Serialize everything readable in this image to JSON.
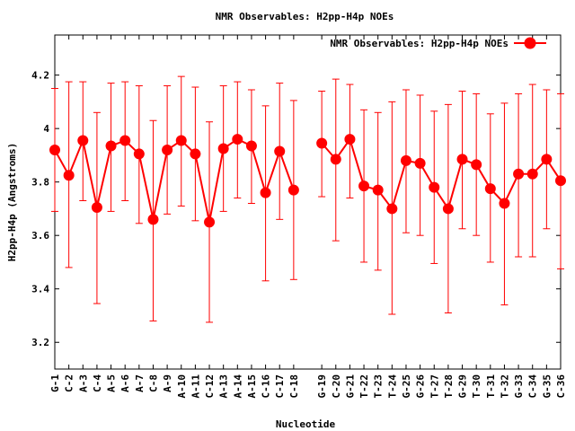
{
  "chart_data": {
    "type": "line",
    "title": "NMR Observables: H2pp-H4p NOEs",
    "xlabel": "Nucleotide",
    "ylabel": "H2pp-H4p (Angstroms)",
    "ylim": [
      3.1,
      4.35
    ],
    "yticks": [
      "3.2",
      "3.4",
      "3.6",
      "3.8",
      "4",
      "4.2"
    ],
    "yticks_values": [
      3.2,
      3.4,
      3.6,
      3.8,
      4.0,
      4.2
    ],
    "grid": false,
    "legend_position": "top-right",
    "categories": [
      "G-1",
      "C-2",
      "A-3",
      "C-4",
      "A-5",
      "A-6",
      "A-7",
      "C-8",
      "A-9",
      "A-10",
      "A-11",
      "C-12",
      "A-13",
      "A-14",
      "A-15",
      "C-16",
      "C-17",
      "C-18",
      "G-19",
      "C-20",
      "G-21",
      "T-22",
      "T-23",
      "T-24",
      "G-25",
      "G-26",
      "T-27",
      "T-28",
      "G-29",
      "T-30",
      "T-31",
      "T-32",
      "G-33",
      "C-34",
      "G-35",
      "C-36"
    ],
    "series": [
      {
        "name": "NMR Observables: H2pp-H4p NOEs",
        "color": "#ff0000",
        "x": [
          1,
          2,
          3,
          4,
          5,
          6,
          7,
          8,
          9,
          10,
          11,
          12,
          13,
          14,
          15,
          16,
          17,
          18,
          20,
          21,
          22,
          23,
          24,
          25,
          26,
          27,
          28,
          29,
          30,
          31,
          32,
          33,
          34,
          35,
          36,
          37
        ],
        "y": [
          3.92,
          3.825,
          3.955,
          3.705,
          3.935,
          3.955,
          3.905,
          3.66,
          3.92,
          3.955,
          3.905,
          3.65,
          3.925,
          3.96,
          3.935,
          3.76,
          3.915,
          3.77,
          3.945,
          3.885,
          3.96,
          3.785,
          3.77,
          3.7,
          3.88,
          3.87,
          3.78,
          3.7,
          3.885,
          3.865,
          3.775,
          3.72,
          3.83,
          3.83,
          3.885,
          3.805
        ],
        "err_high": [
          4.15,
          4.175,
          4.175,
          4.06,
          4.17,
          4.175,
          4.16,
          4.03,
          4.16,
          4.195,
          4.155,
          4.025,
          4.16,
          4.175,
          4.145,
          4.085,
          4.17,
          4.105,
          4.14,
          4.185,
          4.165,
          4.07,
          4.06,
          4.1,
          4.145,
          4.125,
          4.065,
          4.09,
          4.14,
          4.13,
          4.055,
          4.095,
          4.13,
          4.165,
          4.145,
          4.13
        ],
        "err_low": [
          3.69,
          3.48,
          3.73,
          3.345,
          3.69,
          3.73,
          3.645,
          3.28,
          3.68,
          3.71,
          3.655,
          3.275,
          3.69,
          3.74,
          3.72,
          3.43,
          3.66,
          3.435,
          3.745,
          3.58,
          3.74,
          3.5,
          3.47,
          3.305,
          3.61,
          3.6,
          3.495,
          3.31,
          3.625,
          3.6,
          3.5,
          3.34,
          3.52,
          3.52,
          3.625,
          3.475
        ]
      }
    ]
  }
}
